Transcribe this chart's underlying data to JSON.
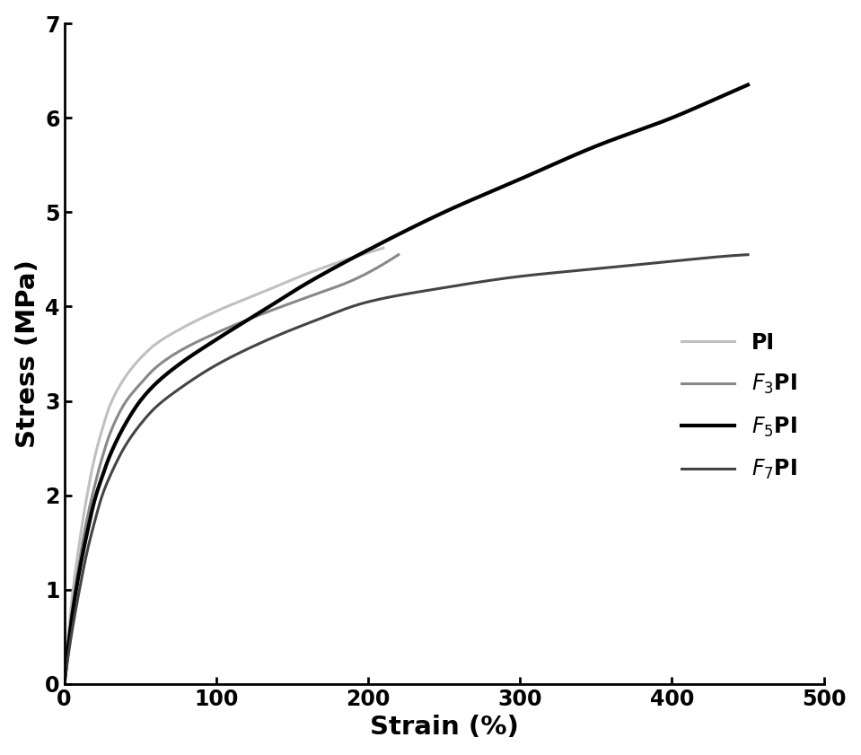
{
  "title": "",
  "xlabel": "Strain (%)",
  "ylabel": "Stress (MPa)",
  "xlim": [
    0,
    500
  ],
  "ylim": [
    0,
    7
  ],
  "xticks": [
    0,
    100,
    200,
    300,
    400,
    500
  ],
  "yticks": [
    0,
    1,
    2,
    3,
    4,
    5,
    6,
    7
  ],
  "series": [
    {
      "label": "PI",
      "color": "#c0c0c0",
      "linewidth": 2.2,
      "type": "PI",
      "x_pts": [
        0,
        5,
        10,
        15,
        20,
        25,
        30,
        40,
        50,
        60,
        75,
        100,
        130,
        160,
        190,
        210
      ],
      "y_pts": [
        0,
        0.9,
        1.5,
        2.0,
        2.4,
        2.7,
        2.95,
        3.25,
        3.45,
        3.6,
        3.75,
        3.95,
        4.15,
        4.35,
        4.52,
        4.62
      ]
    },
    {
      "label": "F3PI",
      "color": "#888888",
      "linewidth": 2.2,
      "type": "F3PI",
      "x_pts": [
        0,
        5,
        10,
        15,
        20,
        25,
        30,
        40,
        50,
        60,
        75,
        100,
        130,
        160,
        190,
        220
      ],
      "y_pts": [
        0,
        0.75,
        1.3,
        1.75,
        2.1,
        2.4,
        2.65,
        2.98,
        3.18,
        3.35,
        3.52,
        3.72,
        3.92,
        4.1,
        4.28,
        4.55
      ]
    },
    {
      "label": "F5PI",
      "color": "#000000",
      "linewidth": 3.0,
      "type": "F5PI",
      "x_pts": [
        0,
        5,
        10,
        15,
        20,
        25,
        30,
        40,
        50,
        60,
        75,
        100,
        130,
        160,
        200,
        250,
        300,
        350,
        400,
        440,
        450
      ],
      "y_pts": [
        0,
        0.7,
        1.2,
        1.6,
        1.95,
        2.2,
        2.42,
        2.75,
        3.0,
        3.18,
        3.38,
        3.65,
        3.95,
        4.25,
        4.6,
        5.0,
        5.35,
        5.7,
        6.0,
        6.28,
        6.35
      ]
    },
    {
      "label": "F7PI",
      "color": "#444444",
      "linewidth": 2.2,
      "type": "F7PI",
      "x_pts": [
        0,
        5,
        10,
        15,
        20,
        25,
        30,
        40,
        50,
        60,
        75,
        100,
        130,
        160,
        200,
        250,
        300,
        350,
        400,
        440,
        450
      ],
      "y_pts": [
        0,
        0.55,
        1.0,
        1.4,
        1.72,
        2.0,
        2.2,
        2.52,
        2.75,
        2.93,
        3.12,
        3.38,
        3.62,
        3.82,
        4.05,
        4.2,
        4.32,
        4.4,
        4.48,
        4.54,
        4.55
      ]
    }
  ],
  "background_color": "#ffffff",
  "legend_fontsize": 17,
  "axis_label_fontsize": 21,
  "tick_fontsize": 17
}
